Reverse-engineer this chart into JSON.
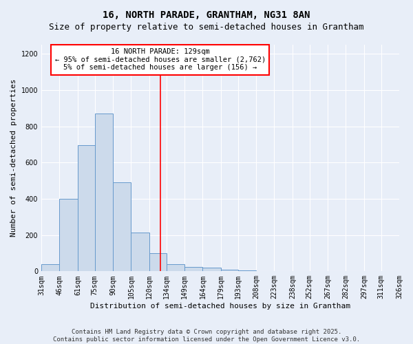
{
  "title": "16, NORTH PARADE, GRANTHAM, NG31 8AN",
  "subtitle": "Size of property relative to semi-detached houses in Grantham",
  "xlabel": "Distribution of semi-detached houses by size in Grantham",
  "ylabel": "Number of semi-detached properties",
  "bin_labels": [
    "31sqm",
    "46sqm",
    "61sqm",
    "75sqm",
    "90sqm",
    "105sqm",
    "120sqm",
    "134sqm",
    "149sqm",
    "164sqm",
    "179sqm",
    "193sqm",
    "208sqm",
    "223sqm",
    "238sqm",
    "252sqm",
    "267sqm",
    "282sqm",
    "297sqm",
    "311sqm",
    "326sqm"
  ],
  "bin_edges": [
    31,
    46,
    61,
    75,
    90,
    105,
    120,
    134,
    149,
    164,
    179,
    193,
    208,
    223,
    238,
    252,
    267,
    282,
    297,
    311,
    326
  ],
  "bar_heights": [
    40,
    400,
    695,
    870,
    490,
    215,
    100,
    40,
    25,
    20,
    10,
    5,
    2,
    1,
    1,
    1,
    0,
    0,
    0,
    0,
    10
  ],
  "bar_color": "#ccdaeb",
  "bar_edge_color": "#6699cc",
  "vline_x": 129,
  "vline_color": "red",
  "annotation_text": "16 NORTH PARADE: 129sqm\n← 95% of semi-detached houses are smaller (2,762)\n5% of semi-detached houses are larger (156) →",
  "annotation_box_color": "white",
  "annotation_box_edge_color": "red",
  "ylim": [
    0,
    1250
  ],
  "yticks": [
    0,
    200,
    400,
    600,
    800,
    1000,
    1200
  ],
  "background_color": "#e8eef8",
  "plot_background_color": "#e8eef8",
  "footer_text": "Contains HM Land Registry data © Crown copyright and database right 2025.\nContains public sector information licensed under the Open Government Licence v3.0.",
  "title_fontsize": 10,
  "subtitle_fontsize": 9,
  "xlabel_fontsize": 8,
  "ylabel_fontsize": 8,
  "tick_fontsize": 7,
  "annotation_fontsize": 7.5,
  "footer_fontsize": 6.5
}
